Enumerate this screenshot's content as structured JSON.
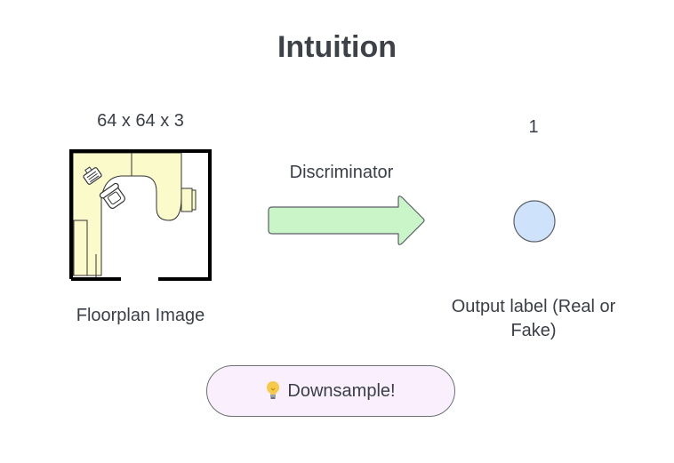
{
  "title": "Intuition",
  "input": {
    "dimensions": "64 x 64 x 3",
    "label": "Floorplan Image"
  },
  "model": {
    "label": "Discriminator",
    "arrow_color": "#c9f5c9"
  },
  "output": {
    "value": "1",
    "label": "Output label (Real or Fake)",
    "node_color": "#cfe2fb"
  },
  "note": {
    "icon": "lightbulb-icon",
    "text": "Downsample!"
  }
}
